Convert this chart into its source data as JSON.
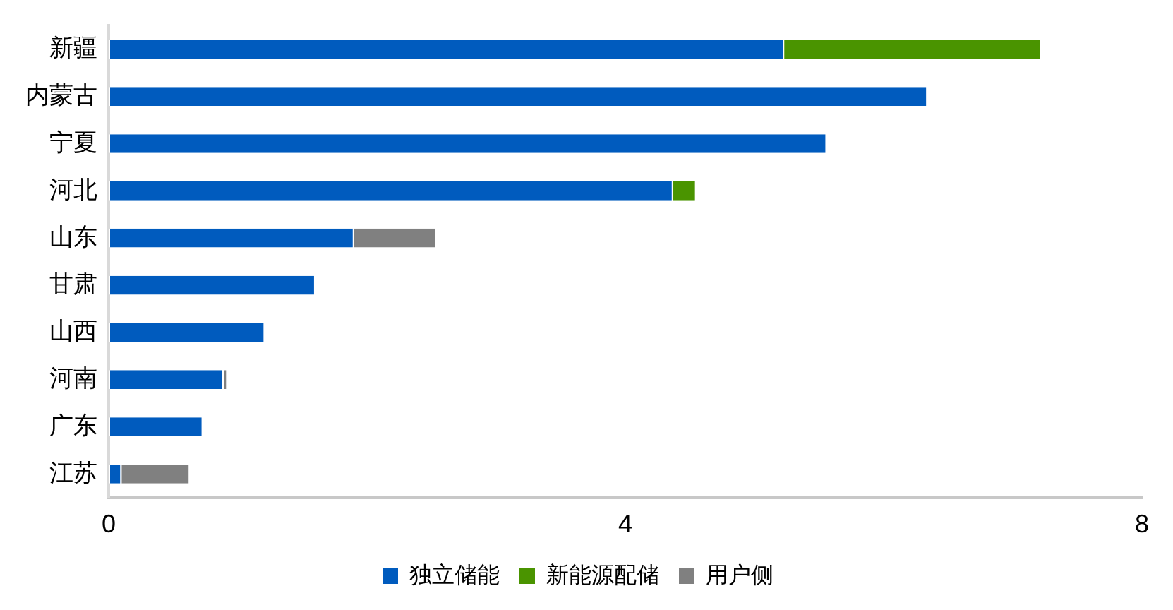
{
  "chart_data": {
    "type": "bar",
    "orientation": "horizontal",
    "stacked": true,
    "categories": [
      "新疆",
      "内蒙古",
      "宁夏",
      "河北",
      "山东",
      "甘肃",
      "山西",
      "河南",
      "广东",
      "江苏"
    ],
    "series": [
      {
        "name": "独立储能",
        "color": "#005bbe",
        "values": [
          5.22,
          6.33,
          5.55,
          4.36,
          1.89,
          1.59,
          1.2,
          0.88,
          0.72,
          0.09
        ]
      },
      {
        "name": "新能源配储",
        "color": "#4a9400",
        "values": [
          1.99,
          null,
          null,
          0.18,
          null,
          null,
          null,
          null,
          null,
          null
        ]
      },
      {
        "name": "用户侧",
        "color": "#808080",
        "values": [
          null,
          null,
          null,
          null,
          0.64,
          null,
          null,
          0.03,
          null,
          0.53
        ]
      }
    ],
    "xlim": [
      0,
      8
    ],
    "xticks": [
      0,
      4,
      8
    ],
    "grid": false,
    "legend": "bottom"
  }
}
